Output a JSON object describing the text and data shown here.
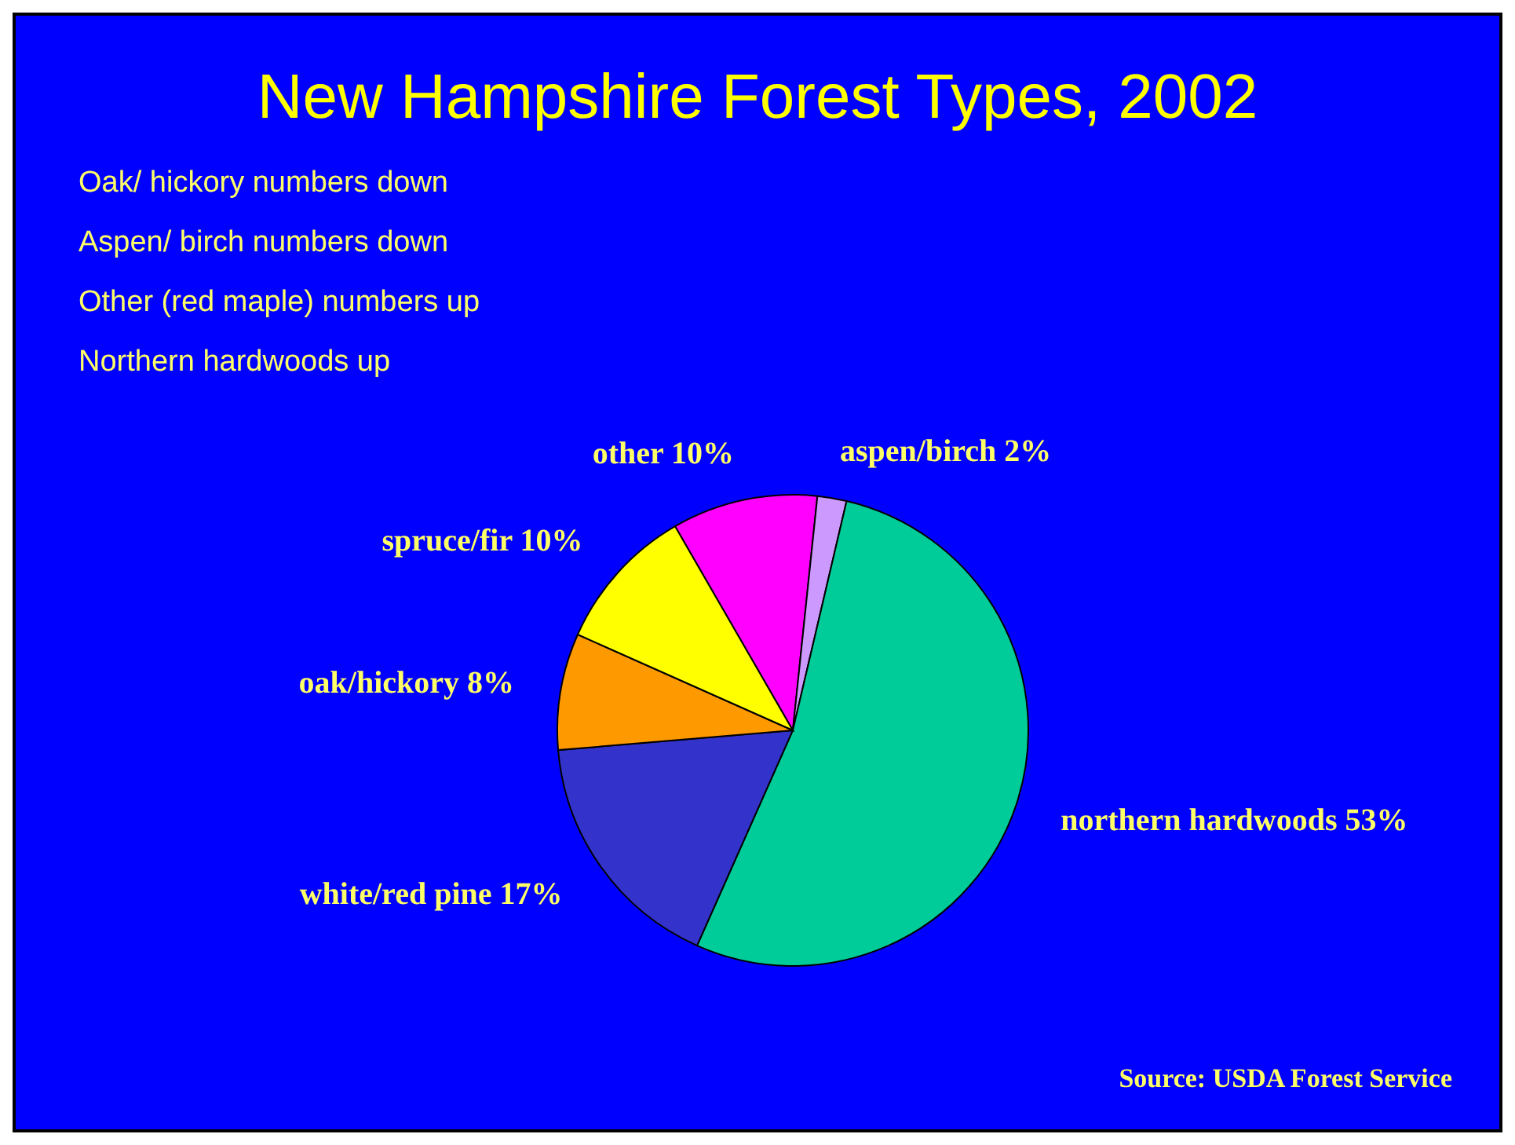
{
  "chart_data": {
    "type": "pie",
    "title": "New Hampshire Forest Types, 2002",
    "categories": [
      "other",
      "aspen/birch",
      "northern hardwoods",
      "white/red pine",
      "oak/hickory",
      "spruce/fir"
    ],
    "values": [
      10,
      2,
      53,
      17,
      8,
      10
    ],
    "colors": [
      "#ff00ff",
      "#cc99ff",
      "#00cc99",
      "#3333cc",
      "#ff9900",
      "#ffff00"
    ],
    "value_labels": [
      "10%",
      "2%",
      "53%",
      "17%",
      "8%",
      "10%"
    ],
    "legend": false,
    "annotations": [
      "Oak/ hickory numbers down",
      "Aspen/ birch numbers down",
      "Other (red maple) numbers up",
      "Northern hardwoods up",
      "Source: USDA Forest Service"
    ]
  }
}
